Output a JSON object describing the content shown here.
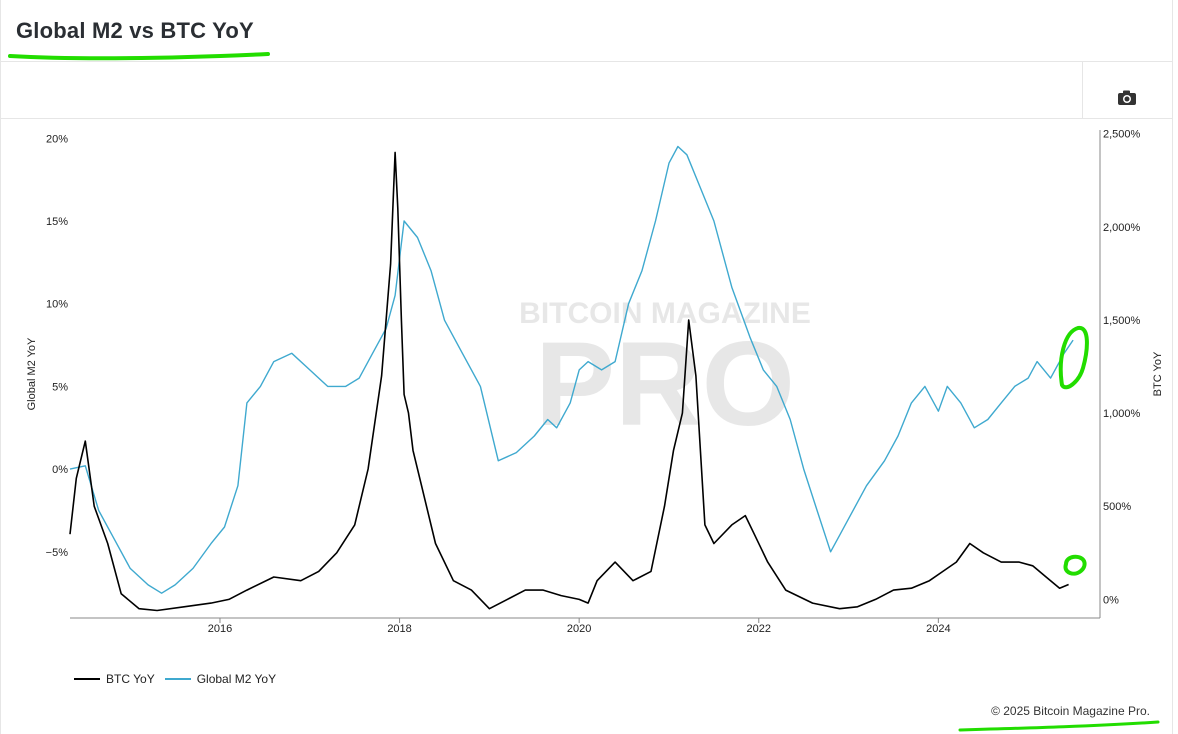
{
  "header": {
    "title": "Global M2 vs BTC YoY"
  },
  "toolbar": {
    "camera_icon": "camera-icon"
  },
  "watermark": {
    "line1": "BITCOIN MAGAZINE",
    "line2": "PRO"
  },
  "footer": {
    "copyright": "© 2025 Bitcoin Magazine Pro."
  },
  "colors": {
    "btc": "#000000",
    "m2": "#3fa9cf",
    "annotation": "#22dd00"
  },
  "legend": [
    {
      "label": "BTC YoY",
      "color": "#000000"
    },
    {
      "label": "Global M2 YoY",
      "color": "#3fa9cf"
    }
  ],
  "chart_data": {
    "type": "line",
    "title": "Global M2 vs BTC YoY",
    "xlabel": "",
    "x_ticks": [
      "2016",
      "2018",
      "2020",
      "2022",
      "2024"
    ],
    "x_range": [
      2014.33,
      2025.8
    ],
    "y_left": {
      "label": "Global M2 YoY",
      "range": [
        -9,
        20.5
      ],
      "ticks": [
        "20%",
        "15%",
        "10%",
        "5%",
        "0%",
        "−5%"
      ],
      "tick_values": [
        20,
        15,
        10,
        5,
        0,
        -5
      ]
    },
    "y_right": {
      "label": "BTC YoY",
      "range": [
        -100,
        2520
      ],
      "ticks": [
        "2,500%",
        "2,000%",
        "1,500%",
        "1,000%",
        "500%",
        "0%"
      ],
      "tick_values": [
        2500,
        2000,
        1500,
        1000,
        500,
        0
      ]
    },
    "grid": false,
    "legend_position": "bottom-left",
    "series": [
      {
        "name": "Global M2 YoY",
        "axis": "left",
        "color": "#3fa9cf",
        "x": [
          2014.33,
          2014.5,
          2014.65,
          2014.8,
          2015.0,
          2015.2,
          2015.35,
          2015.5,
          2015.7,
          2015.9,
          2016.05,
          2016.2,
          2016.3,
          2016.45,
          2016.6,
          2016.8,
          2017.0,
          2017.2,
          2017.4,
          2017.55,
          2017.7,
          2017.85,
          2017.95,
          2018.05,
          2018.2,
          2018.35,
          2018.5,
          2018.7,
          2018.9,
          2019.1,
          2019.3,
          2019.5,
          2019.65,
          2019.75,
          2019.9,
          2020.0,
          2020.1,
          2020.25,
          2020.4,
          2020.55,
          2020.7,
          2020.85,
          2021.0,
          2021.1,
          2021.2,
          2021.35,
          2021.5,
          2021.7,
          2021.9,
          2022.05,
          2022.2,
          2022.35,
          2022.5,
          2022.65,
          2022.8,
          2022.9,
          2023.0,
          2023.2,
          2023.4,
          2023.55,
          2023.7,
          2023.85,
          2024.0,
          2024.1,
          2024.25,
          2024.4,
          2024.55,
          2024.7,
          2024.85,
          2025.0,
          2025.1,
          2025.25,
          2025.4,
          2025.5
        ],
        "y": [
          0,
          0.2,
          -2.5,
          -4,
          -6,
          -7,
          -7.5,
          -7,
          -6,
          -4.5,
          -3.5,
          -1,
          4,
          5,
          6.5,
          7,
          6,
          5,
          5,
          5.5,
          7,
          8.5,
          10.5,
          15,
          14,
          12,
          9,
          7,
          5,
          0.5,
          1,
          2,
          3,
          2.5,
          4,
          6,
          6.5,
          6,
          6.5,
          10,
          12,
          15,
          18.5,
          19.5,
          19,
          17,
          15,
          11,
          8,
          6,
          5,
          3,
          0,
          -2.5,
          -5,
          -4,
          -3,
          -1,
          0.5,
          2,
          4,
          5,
          3.5,
          5,
          4,
          2.5,
          3,
          4,
          5,
          5.5,
          6.5,
          5.5,
          7,
          7.8
        ]
      },
      {
        "name": "BTC YoY",
        "axis": "right",
        "color": "#000000",
        "x": [
          2014.33,
          2014.4,
          2014.5,
          2014.6,
          2014.75,
          2014.9,
          2015.1,
          2015.3,
          2015.6,
          2015.9,
          2016.1,
          2016.3,
          2016.6,
          2016.9,
          2017.1,
          2017.3,
          2017.5,
          2017.65,
          2017.8,
          2017.9,
          2017.95,
          2017.98,
          2018.02,
          2018.05,
          2018.1,
          2018.15,
          2018.25,
          2018.4,
          2018.6,
          2018.8,
          2019.0,
          2019.2,
          2019.4,
          2019.6,
          2019.8,
          2020.0,
          2020.1,
          2020.2,
          2020.4,
          2020.6,
          2020.8,
          2020.95,
          2021.05,
          2021.15,
          2021.22,
          2021.3,
          2021.4,
          2021.5,
          2021.7,
          2021.85,
          2021.95,
          2022.1,
          2022.3,
          2022.6,
          2022.9,
          2023.1,
          2023.3,
          2023.5,
          2023.7,
          2023.9,
          2024.05,
          2024.2,
          2024.35,
          2024.5,
          2024.7,
          2024.9,
          2025.05,
          2025.2,
          2025.35,
          2025.45
        ],
        "y": [
          350,
          650,
          850,
          500,
          300,
          30,
          -50,
          -60,
          -40,
          -20,
          0,
          50,
          120,
          100,
          150,
          250,
          400,
          700,
          1200,
          1800,
          2400,
          2100,
          1500,
          1100,
          1000,
          800,
          600,
          300,
          100,
          50,
          -50,
          0,
          50,
          50,
          20,
          0,
          -20,
          100,
          200,
          100,
          150,
          500,
          800,
          1000,
          1500,
          1200,
          400,
          300,
          400,
          450,
          350,
          200,
          50,
          -20,
          -50,
          -40,
          0,
          50,
          60,
          100,
          150,
          200,
          300,
          250,
          200,
          200,
          180,
          120,
          60,
          80
        ]
      }
    ]
  }
}
